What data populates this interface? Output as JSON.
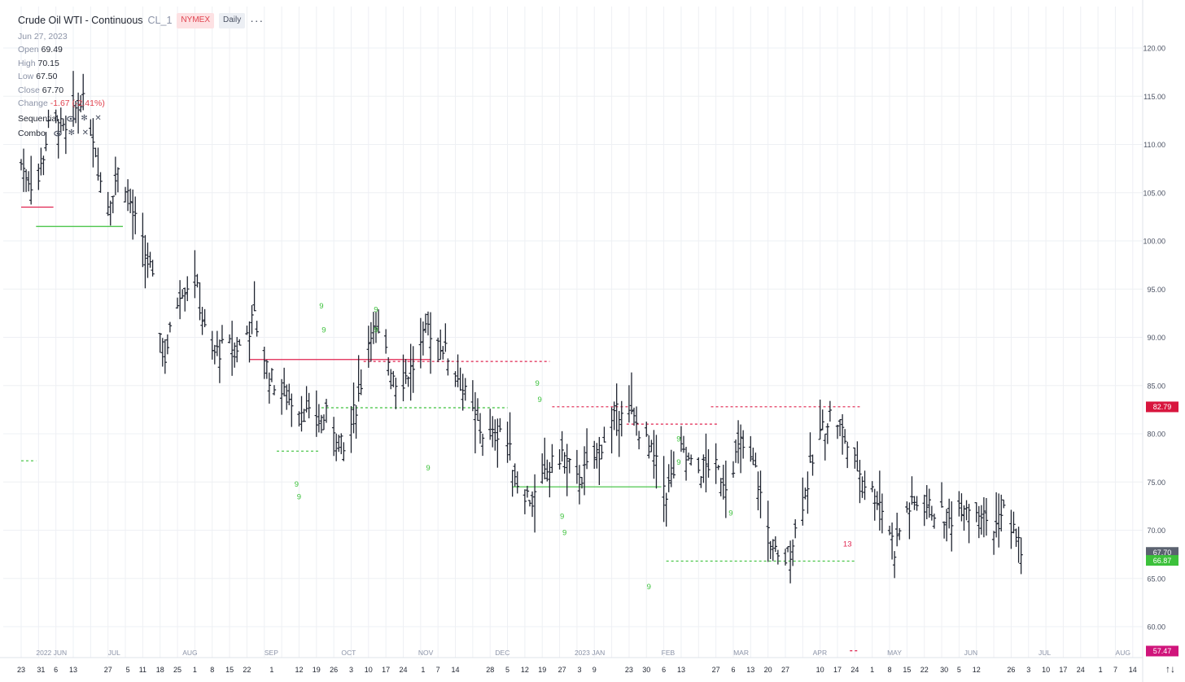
{
  "header": {
    "title": "Crude Oil WTI - Continuous",
    "symbol": "CL_1",
    "exchange": "NYMEX",
    "interval": "Daily",
    "more_icon": "more-dots-icon"
  },
  "ohlc": {
    "date": "Jun 27, 2023",
    "open_label": "Open",
    "open": "69.49",
    "high_label": "High",
    "high": "70.15",
    "low_label": "Low",
    "low": "67.50",
    "close_label": "Close",
    "close": "67.70",
    "change_label": "Change",
    "change": "-1.67 (-2.41%)"
  },
  "indicators": [
    {
      "name": "Sequential",
      "icons": [
        "eye-icon",
        "gear-icon",
        "close-icon"
      ]
    },
    {
      "name": "Combo",
      "icons": [
        "eye-icon",
        "gear-icon",
        "close-icon"
      ]
    }
  ],
  "colors": {
    "bar": "#1f2430",
    "grid": "#eef0f4",
    "up_signal": "#3cc13b",
    "down_signal": "#e0234f",
    "price_tag_last": "#5b6270",
    "price_tag_green": "#3cc13b",
    "price_tag_red": "#d8163e",
    "price_tag_magenta": "#d0157b"
  },
  "bottom_icon": "sort-arrows-icon",
  "chart_data": {
    "type": "ohlc",
    "y_ticks": [
      "120.00",
      "115.00",
      "110.00",
      "105.00",
      "100.00",
      "95.00",
      "90.00",
      "85.00",
      "80.00",
      "75.00",
      "70.00",
      "65.00",
      "60.00"
    ],
    "ylim": [
      57.5,
      122
    ],
    "price_tags": [
      {
        "label": "82.79",
        "value": 82.79,
        "color": "#d8163e"
      },
      {
        "label": "67.70",
        "value": 67.7,
        "color": "#5b6270"
      },
      {
        "label": "66.87",
        "value": 66.87,
        "color": "#3cc13b"
      },
      {
        "label": "57.47",
        "value": 57.47,
        "color": "#d0157b"
      }
    ],
    "months": [
      {
        "label": "2022 JUN",
        "day": 8
      },
      {
        "label": "JUL",
        "day": 37
      },
      {
        "label": "AUG",
        "day": 67
      },
      {
        "label": "SEP",
        "day": 100
      },
      {
        "label": "OCT",
        "day": 131
      },
      {
        "label": "NOV",
        "day": 162
      },
      {
        "label": "DEC",
        "day": 193
      },
      {
        "label": "2023 JAN",
        "day": 225
      },
      {
        "label": "FEB",
        "day": 260
      },
      {
        "label": "MAR",
        "day": 289
      },
      {
        "label": "APR",
        "day": 321
      },
      {
        "label": "MAY",
        "day": 351
      },
      {
        "label": "JUN",
        "day": 382
      },
      {
        "label": "JUL",
        "day": 412
      },
      {
        "label": "AUG",
        "day": 443
      }
    ],
    "day_ticks": [
      {
        "label": "23",
        "day": 0
      },
      {
        "label": "31",
        "day": 8
      },
      {
        "label": "6",
        "day": 14
      },
      {
        "label": "13",
        "day": 21
      },
      {
        "label": "27",
        "day": 35
      },
      {
        "label": "5",
        "day": 43
      },
      {
        "label": "11",
        "day": 49
      },
      {
        "label": "18",
        "day": 56
      },
      {
        "label": "25",
        "day": 63
      },
      {
        "label": "1",
        "day": 70
      },
      {
        "label": "8",
        "day": 77
      },
      {
        "label": "15",
        "day": 84
      },
      {
        "label": "22",
        "day": 91
      },
      {
        "label": "1",
        "day": 101
      },
      {
        "label": "12",
        "day": 112
      },
      {
        "label": "19",
        "day": 119
      },
      {
        "label": "26",
        "day": 126
      },
      {
        "label": "3",
        "day": 133
      },
      {
        "label": "10",
        "day": 140
      },
      {
        "label": "17",
        "day": 147
      },
      {
        "label": "24",
        "day": 154
      },
      {
        "label": "1",
        "day": 162
      },
      {
        "label": "7",
        "day": 168
      },
      {
        "label": "14",
        "day": 175
      },
      {
        "label": "28",
        "day": 189
      },
      {
        "label": "5",
        "day": 196
      },
      {
        "label": "12",
        "day": 203
      },
      {
        "label": "19",
        "day": 210
      },
      {
        "label": "27",
        "day": 218
      },
      {
        "label": "3",
        "day": 225
      },
      {
        "label": "9",
        "day": 231
      },
      {
        "label": "23",
        "day": 245
      },
      {
        "label": "30",
        "day": 252
      },
      {
        "label": "6",
        "day": 259
      },
      {
        "label": "13",
        "day": 266
      },
      {
        "label": "27",
        "day": 280
      },
      {
        "label": "6",
        "day": 287
      },
      {
        "label": "13",
        "day": 294
      },
      {
        "label": "20",
        "day": 301
      },
      {
        "label": "27",
        "day": 308
      },
      {
        "label": "10",
        "day": 322
      },
      {
        "label": "17",
        "day": 329
      },
      {
        "label": "24",
        "day": 336
      },
      {
        "label": "1",
        "day": 343
      },
      {
        "label": "8",
        "day": 350
      },
      {
        "label": "15",
        "day": 357
      },
      {
        "label": "22",
        "day": 364
      },
      {
        "label": "30",
        "day": 372
      },
      {
        "label": "5",
        "day": 378
      },
      {
        "label": "12",
        "day": 385
      },
      {
        "label": "26",
        "day": 399
      },
      {
        "label": "3",
        "day": 406
      },
      {
        "label": "10",
        "day": 413
      },
      {
        "label": "17",
        "day": 420
      },
      {
        "label": "24",
        "day": 427
      },
      {
        "label": "1",
        "day": 435
      },
      {
        "label": "7",
        "day": 441
      },
      {
        "label": "14",
        "day": 448
      }
    ],
    "anchors": [
      [
        0,
        108
      ],
      [
        6,
        105
      ],
      [
        12,
        113
      ],
      [
        18,
        111
      ],
      [
        24,
        115
      ],
      [
        29,
        111
      ],
      [
        34,
        103
      ],
      [
        40,
        108
      ],
      [
        46,
        102
      ],
      [
        52,
        97
      ],
      [
        58,
        88
      ],
      [
        64,
        95
      ],
      [
        70,
        96
      ],
      [
        76,
        88
      ],
      [
        82,
        89
      ],
      [
        88,
        89
      ],
      [
        94,
        92
      ],
      [
        100,
        86
      ],
      [
        106,
        84
      ],
      [
        112,
        83
      ],
      [
        118,
        81
      ],
      [
        124,
        82
      ],
      [
        130,
        78
      ],
      [
        136,
        84
      ],
      [
        141,
        91
      ],
      [
        146,
        89
      ],
      [
        152,
        85
      ],
      [
        158,
        87
      ],
      [
        164,
        91
      ],
      [
        170,
        89
      ],
      [
        176,
        86
      ],
      [
        182,
        82
      ],
      [
        188,
        79
      ],
      [
        194,
        81
      ],
      [
        200,
        75
      ],
      [
        206,
        73
      ],
      [
        212,
        76
      ],
      [
        218,
        78
      ],
      [
        224,
        75
      ],
      [
        230,
        77
      ],
      [
        236,
        80
      ],
      [
        242,
        83
      ],
      [
        248,
        81
      ],
      [
        254,
        78
      ],
      [
        260,
        74
      ],
      [
        266,
        78
      ],
      [
        272,
        76
      ],
      [
        278,
        77
      ],
      [
        284,
        75
      ],
      [
        290,
        79
      ],
      [
        296,
        76
      ],
      [
        302,
        69
      ],
      [
        306,
        66
      ],
      [
        310,
        68
      ],
      [
        314,
        72
      ],
      [
        318,
        76
      ],
      [
        322,
        80
      ],
      [
        326,
        82
      ],
      [
        330,
        81
      ],
      [
        334,
        78
      ],
      [
        340,
        75
      ],
      [
        346,
        73
      ],
      [
        350,
        70
      ],
      [
        352,
        68
      ],
      [
        356,
        72
      ],
      [
        362,
        73
      ],
      [
        368,
        72
      ],
      [
        374,
        71
      ],
      [
        380,
        73
      ],
      [
        386,
        72
      ],
      [
        392,
        70
      ],
      [
        396,
        72
      ],
      [
        400,
        70
      ],
      [
        403,
        68
      ]
    ],
    "levels": [
      {
        "price": 103.5,
        "from": 0,
        "to": 13,
        "color": "red",
        "style": "solid"
      },
      {
        "price": 101.5,
        "from": 6,
        "to": 41,
        "color": "green",
        "style": "solid"
      },
      {
        "price": 77.2,
        "from": 0,
        "to": 6,
        "color": "green",
        "style": "dashed"
      },
      {
        "price": 87.7,
        "from": 92,
        "to": 165,
        "color": "red",
        "style": "solid"
      },
      {
        "price": 87.5,
        "from": 138,
        "to": 213,
        "color": "red",
        "style": "dashed"
      },
      {
        "price": 82.7,
        "from": 121,
        "to": 196,
        "color": "green",
        "style": "dashed"
      },
      {
        "price": 78.2,
        "from": 103,
        "to": 120,
        "color": "green",
        "style": "dashed"
      },
      {
        "price": 82.8,
        "from": 214,
        "to": 245,
        "color": "red",
        "style": "dashed"
      },
      {
        "price": 74.5,
        "from": 198,
        "to": 258,
        "color": "green",
        "style": "solid"
      },
      {
        "price": 81.0,
        "from": 244,
        "to": 281,
        "color": "red",
        "style": "dashed"
      },
      {
        "price": 82.8,
        "from": 278,
        "to": 338,
        "color": "red",
        "style": "dashed"
      },
      {
        "price": 66.8,
        "from": 260,
        "to": 336,
        "color": "green",
        "style": "dashed"
      },
      {
        "price": 57.5,
        "from": 334,
        "to": 337,
        "color": "red",
        "style": "dashed"
      }
    ],
    "signals": [
      {
        "day": 111,
        "price": 74.5,
        "text": "9",
        "color": "green"
      },
      {
        "day": 112,
        "price": 73.2,
        "text": "9",
        "color": "green"
      },
      {
        "day": 121,
        "price": 93.0,
        "text": "9",
        "color": "green"
      },
      {
        "day": 122,
        "price": 90.5,
        "text": "9",
        "color": "green"
      },
      {
        "day": 143,
        "price": 92.6,
        "text": "9",
        "color": "green"
      },
      {
        "day": 143,
        "price": 90.5,
        "text": "9",
        "color": "green"
      },
      {
        "day": 164,
        "price": 76.2,
        "text": "9",
        "color": "green"
      },
      {
        "day": 208,
        "price": 85.0,
        "text": "9",
        "color": "green"
      },
      {
        "day": 209,
        "price": 83.3,
        "text": "9",
        "color": "green"
      },
      {
        "day": 218,
        "price": 71.2,
        "text": "9",
        "color": "green"
      },
      {
        "day": 219,
        "price": 69.5,
        "text": "9",
        "color": "green"
      },
      {
        "day": 253,
        "price": 63.9,
        "text": "9",
        "color": "green"
      },
      {
        "day": 265,
        "price": 79.2,
        "text": "9",
        "color": "green"
      },
      {
        "day": 265,
        "price": 76.8,
        "text": "9",
        "color": "green"
      },
      {
        "day": 286,
        "price": 71.5,
        "text": "9",
        "color": "green"
      },
      {
        "day": 333,
        "price": 68.3,
        "text": "13",
        "color": "red"
      }
    ]
  }
}
